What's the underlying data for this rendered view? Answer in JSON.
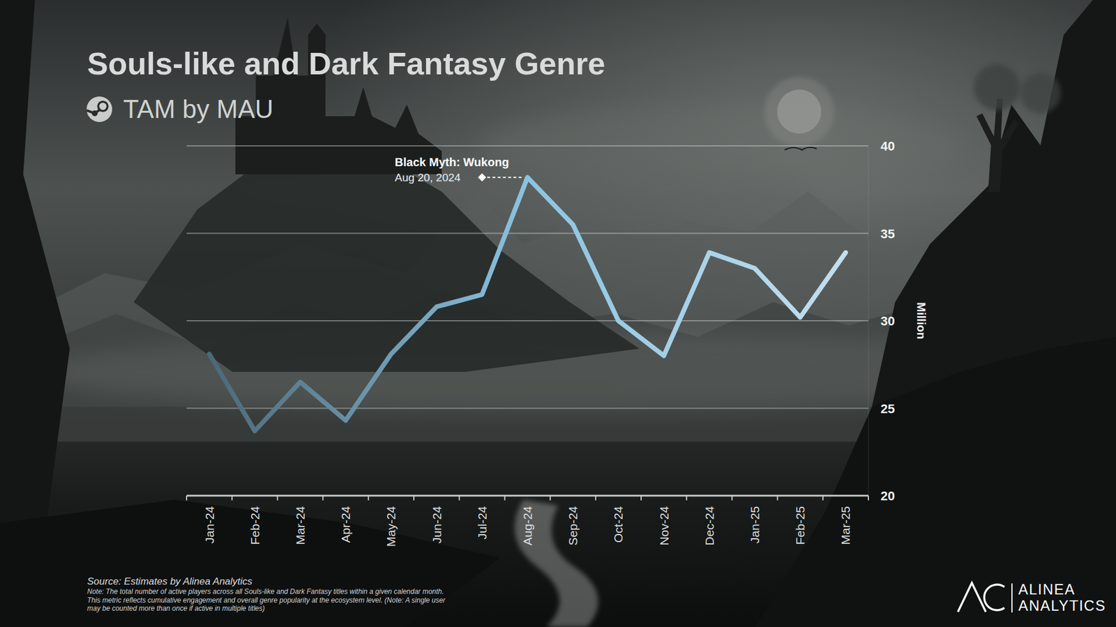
{
  "chart_data": {
    "type": "line",
    "title": "Souls-like and Dark Fantasy Genre",
    "subtitle": "TAM by MAU",
    "y_label": "Million",
    "categories": [
      "Jan-24",
      "Feb-24",
      "Mar-24",
      "Apr-24",
      "May-24",
      "Jun-24",
      "Jul-24",
      "Aug-24",
      "Sep-24",
      "Oct-24",
      "Nov-24",
      "Dec-24",
      "Jan-25",
      "Feb-25",
      "Mar-25"
    ],
    "values": [
      28.1,
      23.7,
      26.5,
      24.3,
      28.1,
      30.8,
      31.5,
      38.2,
      35.5,
      30.0,
      28.0,
      33.9,
      33.0,
      30.2,
      33.9
    ],
    "color": "#8cc3e0",
    "ylim": [
      20,
      40
    ],
    "yticks": [
      20,
      25,
      30,
      35,
      40
    ],
    "grid": true,
    "annotations": [
      {
        "text": "Black Myth: Wukong",
        "date": "Aug 20, 2024",
        "category": "Aug-24"
      }
    ],
    "source": "Source: Estimates by Alinea Analytics",
    "note": [
      "Note: The total number of active players across all Souls-like and Dark Fantasy titles within a given calendar month.",
      "This metric reflects cumulative engagement and overall genre popularity at the ecosystem level. (Note: A single user",
      "may be counted more than once if active in multiple titles)"
    ],
    "brand": [
      "ALINEA",
      "ANALYTICS"
    ]
  }
}
